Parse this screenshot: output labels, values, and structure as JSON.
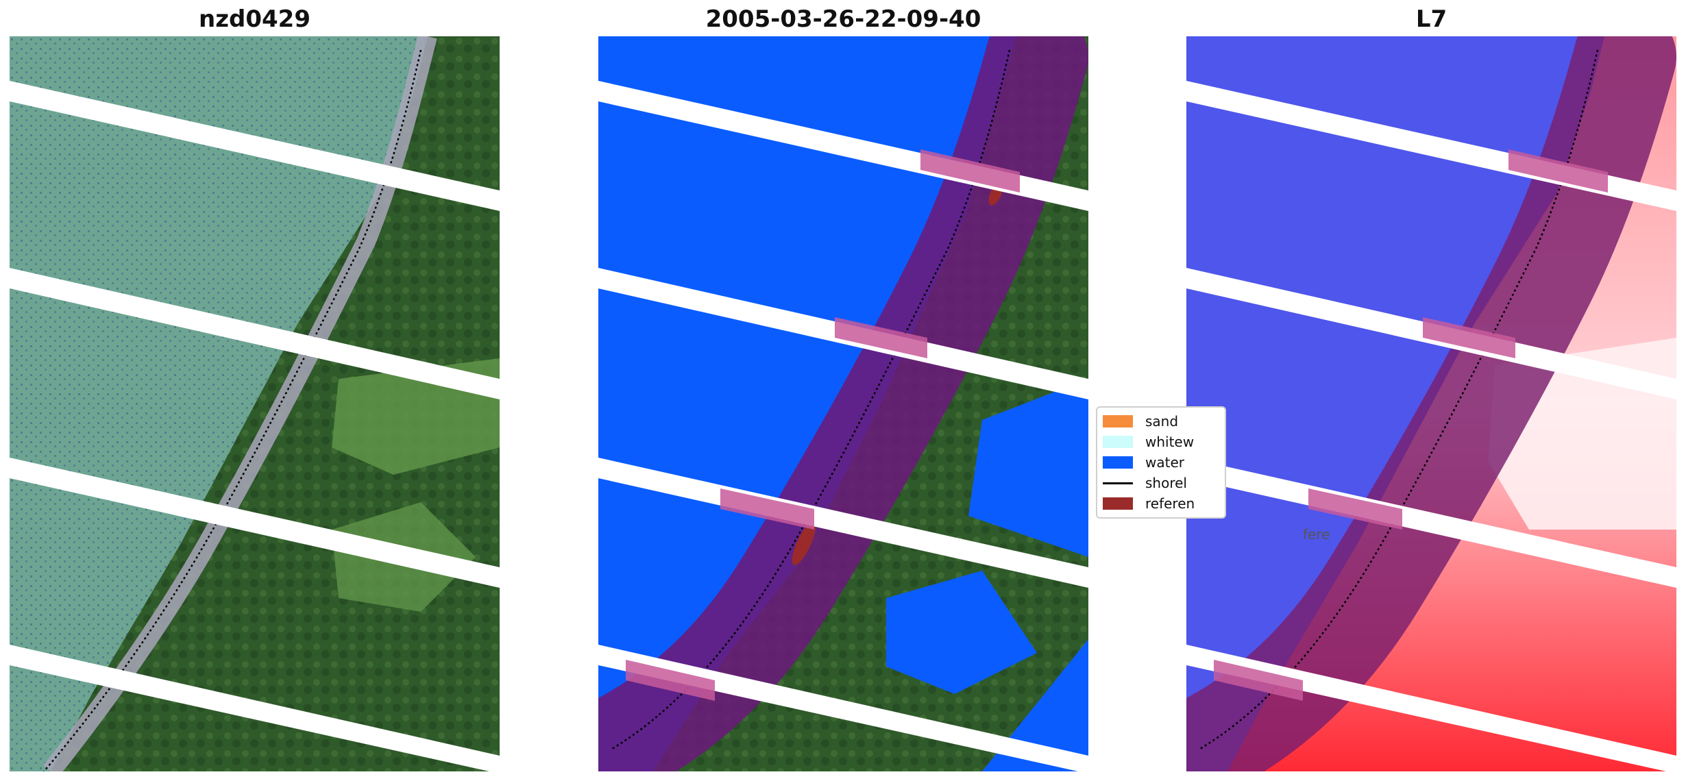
{
  "panels": [
    {
      "title": "nzd0429"
    },
    {
      "title": "2005-03-26-22-09-40"
    },
    {
      "title": "L7"
    }
  ],
  "legend": {
    "items": [
      {
        "label": "sand",
        "color": "#f58c3c",
        "kind": "patch"
      },
      {
        "label": "whitew",
        "color": "#ccfcfc",
        "kind": "patch"
      },
      {
        "label": "water",
        "color": "#0a5cff",
        "kind": "patch"
      },
      {
        "label": "shorel",
        "color": "#000000",
        "kind": "line"
      },
      {
        "label": "referen",
        "color": "#9b2a2a",
        "kind": "patch"
      }
    ],
    "overflow_text": "fere"
  },
  "colors": {
    "ocean_rgb": "#5fa089",
    "land_dark": "#2f5a2a",
    "land_light": "#6a9a4e",
    "water_class": "#0a5cff",
    "buffer": "#7a1f6e",
    "index_blue": "#2a32e8",
    "index_red": "#ff1a2a",
    "gap_stripe": "#ffffff"
  }
}
